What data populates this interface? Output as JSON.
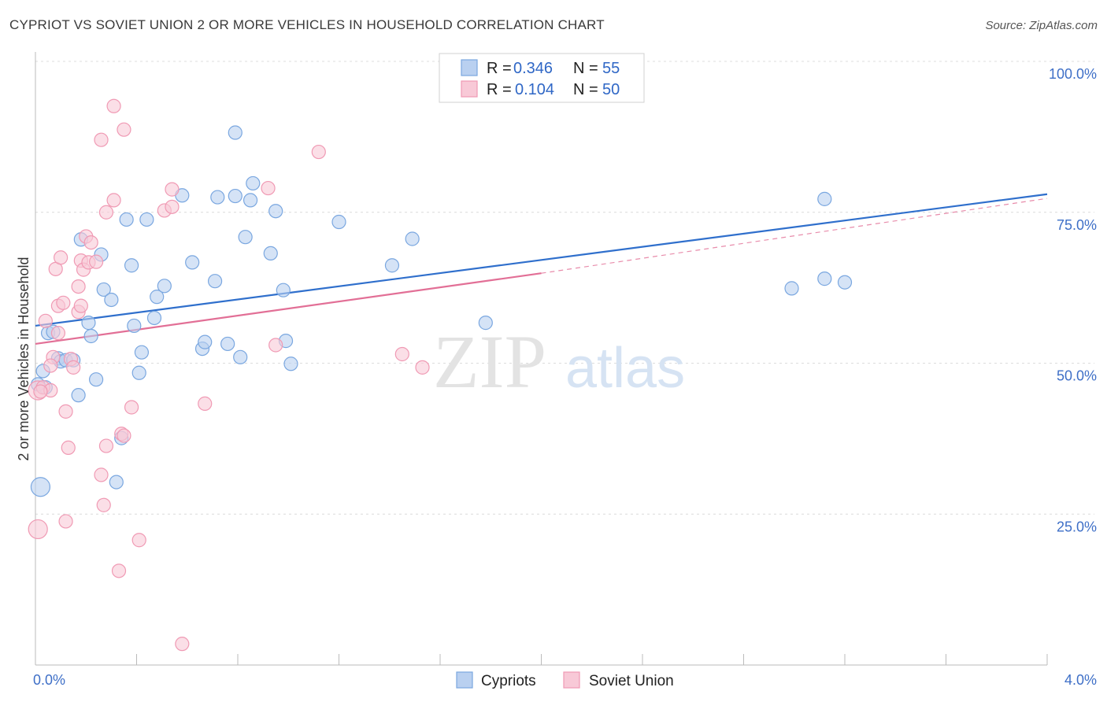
{
  "title": "CYPRIOT VS SOVIET UNION 2 OR MORE VEHICLES IN HOUSEHOLD CORRELATION CHART",
  "source": "Source: ZipAtlas.com",
  "watermark": {
    "zip": "ZIP",
    "atlas": "atlas"
  },
  "chart_data": {
    "type": "scatter",
    "title": "CYPRIOT VS SOVIET UNION 2 OR MORE VEHICLES IN HOUSEHOLD CORRELATION CHART",
    "xlabel": "",
    "ylabel": "2 or more Vehicles in Household",
    "xlim": [
      0,
      4.0
    ],
    "ylim": [
      0,
      100
    ],
    "x_tick_labels": [
      "0.0%",
      "4.0%"
    ],
    "y_ticks": [
      25,
      50,
      75,
      100
    ],
    "y_tick_labels": [
      "25.0%",
      "50.0%",
      "75.0%",
      "100.0%"
    ],
    "grid": true,
    "legend_position": "top-center",
    "legend": [
      {
        "r_label": "R =",
        "r_value": "0.346",
        "n_label": "N =",
        "n_value": "55"
      },
      {
        "r_label": "R =",
        "r_value": "0.104",
        "n_label": "N =",
        "n_value": "50"
      }
    ],
    "series": [
      {
        "name": "Cypriots",
        "color": "#7aa7e0",
        "fill": "#b9d0f0",
        "trend_color": "#2f6fcc",
        "trend": {
          "x0": 0.0,
          "y0": 56.2,
          "x1": 4.0,
          "y1": 78.0
        },
        "points": [
          [
            0.03,
            48.7
          ],
          [
            0.04,
            46.0
          ],
          [
            0.05,
            55.0
          ],
          [
            0.07,
            55.2
          ],
          [
            0.09,
            50.8
          ],
          [
            0.1,
            50.3
          ],
          [
            0.12,
            50.5
          ],
          [
            0.15,
            50.5
          ],
          [
            0.17,
            44.7
          ],
          [
            0.18,
            70.5
          ],
          [
            0.21,
            56.7
          ],
          [
            0.22,
            54.5
          ],
          [
            0.24,
            47.3
          ],
          [
            0.26,
            68.0
          ],
          [
            0.27,
            62.2
          ],
          [
            0.3,
            60.5
          ],
          [
            0.32,
            30.3
          ],
          [
            0.34,
            37.6
          ],
          [
            0.36,
            73.8
          ],
          [
            0.38,
            66.2
          ],
          [
            0.39,
            56.2
          ],
          [
            0.41,
            48.4
          ],
          [
            0.42,
            51.8
          ],
          [
            0.44,
            73.8
          ],
          [
            0.47,
            57.5
          ],
          [
            0.48,
            61.0
          ],
          [
            0.51,
            62.8
          ],
          [
            0.58,
            77.8
          ],
          [
            0.62,
            66.7
          ],
          [
            0.66,
            52.4
          ],
          [
            0.67,
            53.5
          ],
          [
            0.71,
            63.6
          ],
          [
            0.72,
            77.5
          ],
          [
            0.76,
            53.2
          ],
          [
            0.79,
            88.2
          ],
          [
            0.79,
            77.7
          ],
          [
            0.81,
            51.0
          ],
          [
            0.83,
            70.9
          ],
          [
            0.85,
            77.0
          ],
          [
            0.86,
            79.8
          ],
          [
            0.93,
            68.2
          ],
          [
            0.95,
            75.2
          ],
          [
            0.98,
            62.1
          ],
          [
            0.99,
            53.7
          ],
          [
            1.01,
            49.9
          ],
          [
            1.2,
            73.4
          ],
          [
            1.41,
            66.2
          ],
          [
            1.49,
            70.6
          ],
          [
            1.78,
            56.7
          ],
          [
            2.99,
            62.4
          ],
          [
            3.12,
            77.2
          ],
          [
            3.12,
            64.0
          ],
          [
            3.2,
            63.4
          ],
          [
            0.02,
            29.5
          ],
          [
            0.01,
            46.5
          ]
        ]
      },
      {
        "name": "Soviet Union",
        "color": "#f09ab4",
        "fill": "#f8c9d7",
        "trend_color": "#e26f96",
        "trend": {
          "x0": 0.0,
          "y0": 53.2,
          "x1": 2.0,
          "y1": 64.9
        },
        "trend_extension": {
          "x0": 2.0,
          "y0": 64.9,
          "x1": 4.0,
          "y1": 77.3
        },
        "points": [
          [
            0.01,
            45.5
          ],
          [
            0.01,
            22.5
          ],
          [
            0.03,
            46.0
          ],
          [
            0.04,
            57.0
          ],
          [
            0.06,
            45.5
          ],
          [
            0.07,
            51.0
          ],
          [
            0.08,
            65.6
          ],
          [
            0.09,
            55.0
          ],
          [
            0.09,
            59.5
          ],
          [
            0.1,
            67.5
          ],
          [
            0.11,
            60.0
          ],
          [
            0.12,
            42.0
          ],
          [
            0.12,
            23.8
          ],
          [
            0.13,
            36.0
          ],
          [
            0.14,
            50.7
          ],
          [
            0.15,
            49.3
          ],
          [
            0.17,
            62.7
          ],
          [
            0.17,
            58.5
          ],
          [
            0.18,
            67.0
          ],
          [
            0.19,
            65.5
          ],
          [
            0.2,
            71.0
          ],
          [
            0.21,
            66.7
          ],
          [
            0.22,
            70.0
          ],
          [
            0.24,
            66.8
          ],
          [
            0.26,
            87.0
          ],
          [
            0.26,
            31.5
          ],
          [
            0.27,
            26.5
          ],
          [
            0.28,
            75.0
          ],
          [
            0.28,
            36.3
          ],
          [
            0.31,
            92.6
          ],
          [
            0.31,
            77.0
          ],
          [
            0.33,
            15.6
          ],
          [
            0.34,
            38.3
          ],
          [
            0.35,
            88.7
          ],
          [
            0.38,
            42.7
          ],
          [
            0.41,
            20.7
          ],
          [
            0.51,
            75.3
          ],
          [
            0.54,
            78.8
          ],
          [
            0.54,
            75.9
          ],
          [
            0.58,
            3.5
          ],
          [
            0.67,
            43.3
          ],
          [
            0.92,
            79.0
          ],
          [
            0.95,
            53.0
          ],
          [
            1.12,
            85.0
          ],
          [
            1.45,
            51.5
          ],
          [
            1.53,
            49.3
          ],
          [
            0.02,
            45.3
          ],
          [
            0.06,
            49.6
          ],
          [
            0.18,
            59.5
          ],
          [
            0.35,
            38.0
          ]
        ]
      }
    ]
  }
}
